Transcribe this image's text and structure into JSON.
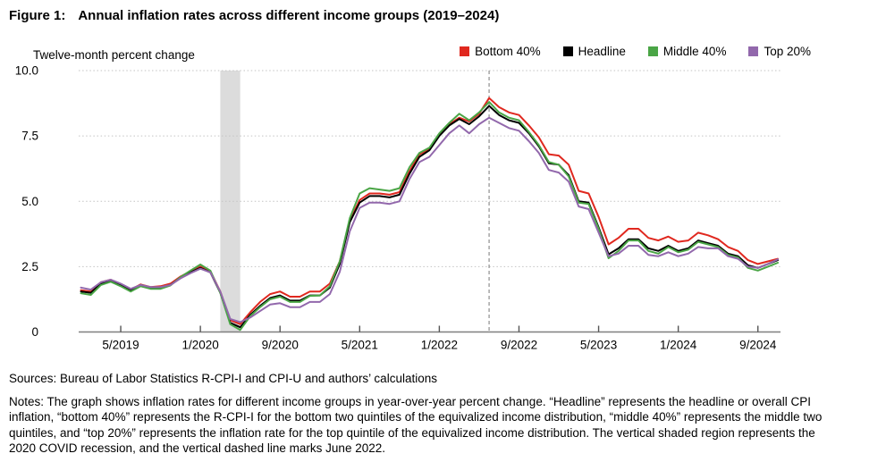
{
  "header": {
    "figure_label": "Figure 1:",
    "title": "Annual inflation rates across different income groups (2019–2024)"
  },
  "footer": {
    "sources": "Sources: Bureau of Labor Statistics R-CPI-I and CPI-U and authors’ calculations",
    "notes": "Notes: The graph shows inflation rates for different income groups in year-over-year percent change. “Headline” represents the headline or overall CPI inflation, “bottom 40%” represents the R-CPI-I for the bottom two quintiles of the equivalized income distribution, “middle 40%” represents the middle two quintiles, and “top 20%” represents the inflation rate for the top quintile of the equivalized income distribution. The vertical shaded region represents the 2020 COVID recession, and the vertical dashed line marks June 2022."
  },
  "chart_data": {
    "type": "line",
    "title": "Annual inflation rates across different income groups (2019–2024)",
    "ylabel": "Twelve-month percent change",
    "xlabel": "",
    "ylim": [
      0,
      10
    ],
    "grid": "horizontal-dotted",
    "legend_position": "top-right",
    "x": [
      "1/2019",
      "2/2019",
      "3/2019",
      "4/2019",
      "5/2019",
      "6/2019",
      "7/2019",
      "8/2019",
      "9/2019",
      "10/2019",
      "11/2019",
      "12/2019",
      "1/2020",
      "2/2020",
      "3/2020",
      "4/2020",
      "5/2020",
      "6/2020",
      "7/2020",
      "8/2020",
      "9/2020",
      "10/2020",
      "11/2020",
      "12/2020",
      "1/2021",
      "2/2021",
      "3/2021",
      "4/2021",
      "5/2021",
      "6/2021",
      "7/2021",
      "8/2021",
      "9/2021",
      "10/2021",
      "11/2021",
      "12/2021",
      "1/2022",
      "2/2022",
      "3/2022",
      "4/2022",
      "5/2022",
      "6/2022",
      "7/2022",
      "8/2022",
      "9/2022",
      "10/2022",
      "11/2022",
      "12/2022",
      "1/2023",
      "2/2023",
      "3/2023",
      "4/2023",
      "5/2023",
      "6/2023",
      "7/2023",
      "8/2023",
      "9/2023",
      "10/2023",
      "11/2023",
      "12/2023",
      "1/2024",
      "2/2024",
      "3/2024",
      "4/2024",
      "5/2024",
      "6/2024",
      "7/2024",
      "8/2024",
      "9/2024",
      "10/2024",
      "11/2024"
    ],
    "x_ticks": [
      {
        "label": "5/2019",
        "index": 4
      },
      {
        "label": "1/2020",
        "index": 12
      },
      {
        "label": "9/2020",
        "index": 20
      },
      {
        "label": "5/2021",
        "index": 28
      },
      {
        "label": "1/2022",
        "index": 36
      },
      {
        "label": "9/2022",
        "index": 44
      },
      {
        "label": "5/2023",
        "index": 52
      },
      {
        "label": "1/2024",
        "index": 60
      },
      {
        "label": "9/2024",
        "index": 68
      }
    ],
    "y_ticks": [
      {
        "label": "0",
        "value": 0
      },
      {
        "label": "2.5",
        "value": 2.5
      },
      {
        "label": "5.0",
        "value": 5
      },
      {
        "label": "7.5",
        "value": 7.5
      },
      {
        "label": "10.0",
        "value": 10
      }
    ],
    "recession": {
      "label": "2020 COVID recession",
      "start_index": 14,
      "end_index": 16,
      "color": "#dcdcdc"
    },
    "dashed_line": {
      "label": "June 2022",
      "index": 41,
      "color": "#8f8f8f"
    },
    "series": [
      {
        "id": "bottom-40",
        "name": "Bottom 40%",
        "color": "#e0281f",
        "values": [
          1.6,
          1.55,
          1.9,
          2.0,
          1.82,
          1.62,
          1.82,
          1.72,
          1.75,
          1.85,
          2.12,
          2.32,
          2.5,
          2.32,
          1.55,
          0.45,
          0.3,
          0.75,
          1.15,
          1.45,
          1.55,
          1.35,
          1.35,
          1.55,
          1.55,
          1.85,
          2.7,
          4.25,
          5.05,
          5.3,
          5.3,
          5.25,
          5.35,
          6.15,
          6.8,
          7.0,
          7.55,
          7.95,
          8.2,
          8.05,
          8.35,
          8.95,
          8.6,
          8.4,
          8.3,
          7.9,
          7.45,
          6.8,
          6.75,
          6.4,
          5.4,
          5.3,
          4.4,
          3.35,
          3.6,
          3.95,
          3.95,
          3.6,
          3.5,
          3.65,
          3.45,
          3.5,
          3.8,
          3.7,
          3.55,
          3.25,
          3.1,
          2.75,
          2.6,
          2.7,
          2.8
        ]
      },
      {
        "id": "headline",
        "name": "Headline",
        "color": "#000000",
        "values": [
          1.55,
          1.5,
          1.85,
          1.95,
          1.8,
          1.6,
          1.8,
          1.7,
          1.7,
          1.8,
          2.08,
          2.28,
          2.45,
          2.28,
          1.5,
          0.35,
          0.18,
          0.65,
          1.0,
          1.3,
          1.4,
          1.2,
          1.2,
          1.4,
          1.4,
          1.7,
          2.6,
          4.2,
          4.95,
          5.2,
          5.2,
          5.15,
          5.25,
          6.05,
          6.7,
          6.95,
          7.5,
          7.9,
          8.15,
          7.95,
          8.25,
          8.65,
          8.3,
          8.1,
          8.0,
          7.6,
          7.1,
          6.45,
          6.4,
          6.0,
          5.0,
          4.95,
          4.0,
          2.97,
          3.2,
          3.55,
          3.55,
          3.2,
          3.1,
          3.3,
          3.1,
          3.2,
          3.5,
          3.4,
          3.3,
          3.0,
          2.9,
          2.55,
          2.45,
          2.6,
          2.75
        ]
      },
      {
        "id": "middle-40",
        "name": "Middle 40%",
        "color": "#4aa546",
        "values": [
          1.48,
          1.42,
          1.8,
          1.92,
          1.75,
          1.55,
          1.75,
          1.65,
          1.65,
          1.78,
          2.1,
          2.35,
          2.58,
          2.35,
          1.5,
          0.3,
          0.08,
          0.6,
          0.95,
          1.25,
          1.35,
          1.15,
          1.15,
          1.38,
          1.4,
          1.75,
          2.7,
          4.35,
          5.3,
          5.5,
          5.45,
          5.4,
          5.5,
          6.3,
          6.85,
          7.05,
          7.6,
          8.0,
          8.35,
          8.1,
          8.4,
          8.8,
          8.4,
          8.2,
          8.1,
          7.65,
          7.15,
          6.5,
          6.4,
          5.95,
          4.95,
          4.9,
          3.95,
          2.82,
          3.1,
          3.5,
          3.5,
          3.1,
          3.0,
          3.25,
          3.05,
          3.15,
          3.45,
          3.35,
          3.25,
          2.95,
          2.85,
          2.45,
          2.35,
          2.5,
          2.65
        ]
      },
      {
        "id": "top-20",
        "name": "Top 20%",
        "color": "#9268ac",
        "values": [
          1.7,
          1.62,
          1.9,
          2.0,
          1.85,
          1.65,
          1.8,
          1.72,
          1.72,
          1.8,
          2.05,
          2.25,
          2.42,
          2.28,
          1.55,
          0.5,
          0.38,
          0.55,
          0.8,
          1.05,
          1.1,
          0.95,
          0.95,
          1.15,
          1.15,
          1.45,
          2.3,
          3.85,
          4.75,
          4.95,
          4.95,
          4.9,
          5.0,
          5.85,
          6.5,
          6.7,
          7.15,
          7.6,
          7.9,
          7.6,
          7.95,
          8.2,
          8.0,
          7.8,
          7.7,
          7.3,
          6.85,
          6.2,
          6.1,
          5.75,
          4.8,
          4.7,
          3.8,
          2.9,
          3.0,
          3.3,
          3.3,
          2.95,
          2.9,
          3.05,
          2.9,
          3.0,
          3.25,
          3.2,
          3.2,
          2.9,
          2.8,
          2.5,
          2.45,
          2.6,
          2.78
        ]
      }
    ]
  }
}
